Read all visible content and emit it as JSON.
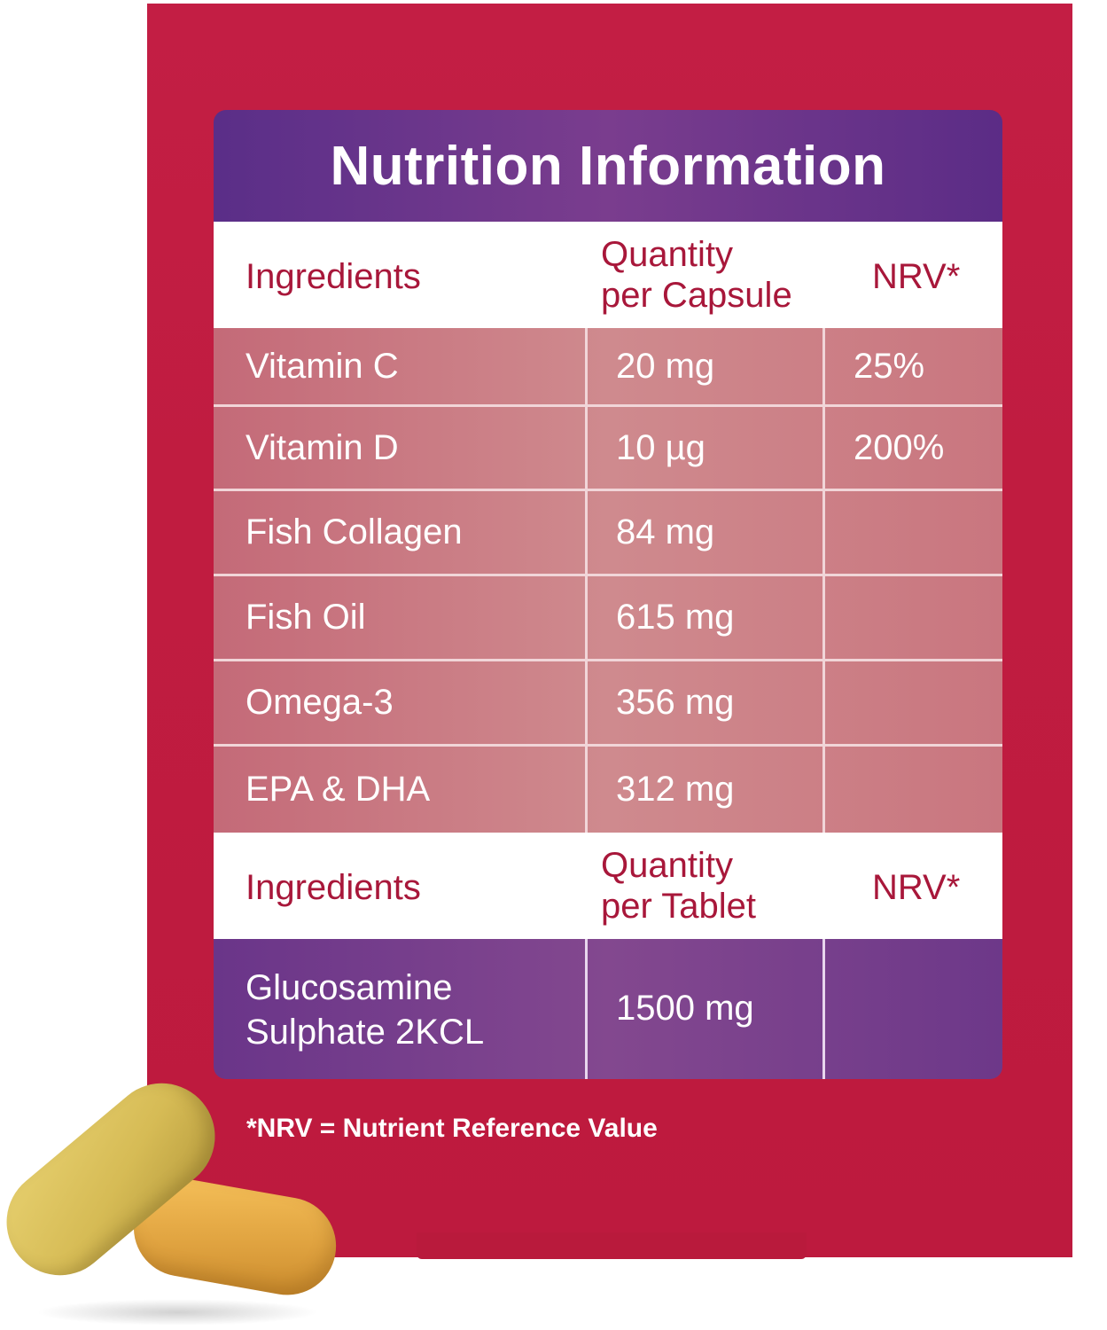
{
  "title": "Nutrition Information",
  "header_capsule": {
    "ingredients": "Ingredients",
    "quantity_line1": "Quantity",
    "quantity_line2": "per Capsule",
    "nrv": "NRV*"
  },
  "capsule_rows": [
    {
      "ingredient": "Vitamin C",
      "quantity": "20 mg",
      "nrv": "25%"
    },
    {
      "ingredient": "Vitamin D",
      "quantity": "10 µg",
      "nrv": "200%"
    },
    {
      "ingredient": "Fish Collagen",
      "quantity": "84 mg",
      "nrv": ""
    },
    {
      "ingredient": "Fish Oil",
      "quantity": "615 mg",
      "nrv": ""
    },
    {
      "ingredient": "Omega-3",
      "quantity": "356 mg",
      "nrv": ""
    },
    {
      "ingredient": "EPA & DHA",
      "quantity": "312 mg",
      "nrv": ""
    }
  ],
  "header_tablet": {
    "ingredients": "Ingredients",
    "quantity_line1": "Quantity",
    "quantity_line2": "per Tablet",
    "nrv": "NRV*"
  },
  "tablet_row": {
    "ingredient_line1": "Glucosamine",
    "ingredient_line2": "Sulphate 2KCL",
    "quantity": "1500 mg",
    "nrv": ""
  },
  "footnote": "*NRV = Nutrient Reference Value",
  "colors": {
    "background_red": "#c01c40",
    "title_purple": "#5a2e88",
    "header_text": "#a8173a"
  }
}
